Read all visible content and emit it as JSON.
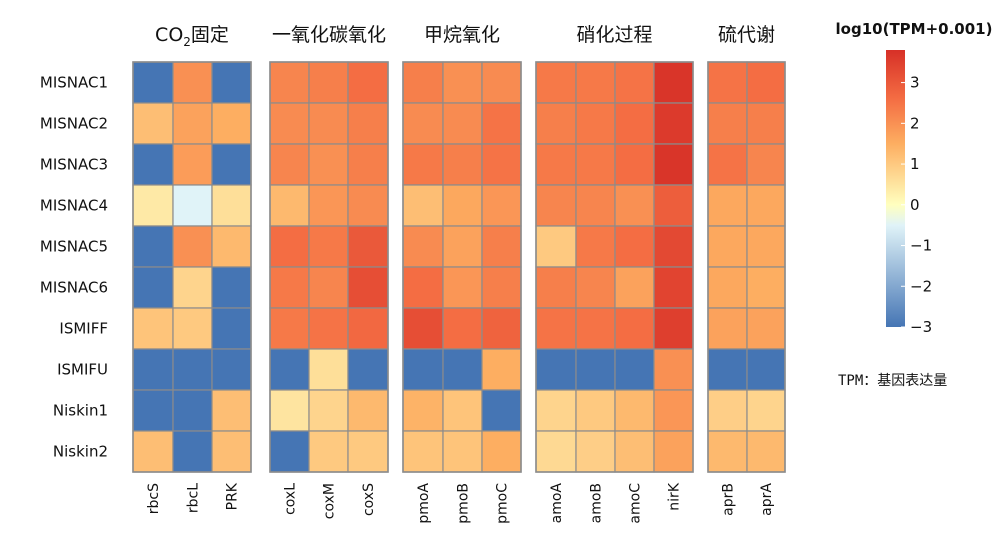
{
  "chart_data": {
    "type": "heatmap",
    "rows": [
      "MISNAC1",
      "MISNAC2",
      "MISNAC3",
      "MISNAC4",
      "MISNAC5",
      "MISNAC6",
      "ISMIFF",
      "ISMIFU",
      "Niskin1",
      "Niskin2"
    ],
    "groups": [
      {
        "title": "CO2固定",
        "title_main": "CO",
        "title_sub": "2",
        "title_tail": "固定",
        "columns": [
          "rbcS",
          "rbcL",
          "PRK"
        ],
        "values": [
          [
            -3,
            2,
            -3
          ],
          [
            1.2,
            1.7,
            1.5
          ],
          [
            -3,
            1.8,
            -3
          ],
          [
            0.4,
            -0.5,
            0.6
          ],
          [
            -3,
            2,
            1.3
          ],
          [
            -3,
            0.8,
            -3
          ],
          [
            1.1,
            1.0,
            -3
          ],
          [
            -3,
            -3,
            -3
          ],
          [
            -3,
            -3,
            1.2
          ],
          [
            1.2,
            -3,
            1.2
          ]
        ]
      },
      {
        "title": "一氧化碳氧化",
        "columns": [
          "coxL",
          "coxM",
          "coxS"
        ],
        "values": [
          [
            2.2,
            2.3,
            2.6
          ],
          [
            2.1,
            2.1,
            2.3
          ],
          [
            2.2,
            2.0,
            2.3
          ],
          [
            1.3,
            1.9,
            2.1
          ],
          [
            2.6,
            2.4,
            3.0
          ],
          [
            2.4,
            2.2,
            3.2
          ],
          [
            2.4,
            2.5,
            2.7
          ],
          [
            -3,
            0.6,
            -3
          ],
          [
            0.5,
            0.8,
            1.3
          ],
          [
            -3,
            1.0,
            1.0
          ]
        ]
      },
      {
        "title": "甲烷氧化",
        "columns": [
          "pmoA",
          "pmoB",
          "pmoC"
        ],
        "values": [
          [
            2.3,
            2.0,
            2.1
          ],
          [
            2.1,
            2.1,
            2.5
          ],
          [
            2.4,
            2.3,
            2.5
          ],
          [
            1.2,
            1.6,
            1.9
          ],
          [
            2.1,
            1.7,
            2.3
          ],
          [
            2.6,
            1.9,
            2.3
          ],
          [
            3.2,
            2.6,
            2.8
          ],
          [
            -3,
            -3,
            1.5
          ],
          [
            1.4,
            1.1,
            -3
          ],
          [
            1.1,
            1.1,
            1.5
          ]
        ]
      },
      {
        "title": "硝化过程",
        "columns": [
          "amoA",
          "amoB",
          "amoC",
          "nirK"
        ],
        "values": [
          [
            2.4,
            2.4,
            2.5,
            3.7
          ],
          [
            2.3,
            2.4,
            2.6,
            3.6
          ],
          [
            2.4,
            2.4,
            2.6,
            3.7
          ],
          [
            2.2,
            2.2,
            2.0,
            2.9
          ],
          [
            1.0,
            2.4,
            2.6,
            3.3
          ],
          [
            2.3,
            2.2,
            1.7,
            3.4
          ],
          [
            2.5,
            2.5,
            2.6,
            3.5
          ],
          [
            -3,
            -3,
            -3,
            2.0
          ],
          [
            0.8,
            1.0,
            1.3,
            1.9
          ],
          [
            0.7,
            0.9,
            1.2,
            1.7
          ]
        ]
      },
      {
        "title": "硫代谢",
        "columns": [
          "aprB",
          "aprA"
        ],
        "values": [
          [
            2.5,
            2.6
          ],
          [
            2.3,
            2.3
          ],
          [
            2.5,
            2.2
          ],
          [
            1.6,
            1.6
          ],
          [
            1.6,
            1.6
          ],
          [
            1.6,
            1.5
          ],
          [
            1.7,
            1.7
          ],
          [
            -3,
            -3
          ],
          [
            0.9,
            0.8
          ],
          [
            1.3,
            1.3
          ]
        ]
      }
    ],
    "colorbar": {
      "title": "log10(TPM+0.001)",
      "min": -3,
      "max": 3.8,
      "ticks": [
        3,
        2,
        1,
        0,
        -1,
        -2,
        -3
      ],
      "tick_labels": [
        "3",
        "2",
        "1",
        "0",
        "−1",
        "−2",
        "−3"
      ],
      "colors": [
        "#4575b4",
        "#e0f3f8",
        "#ffffbf",
        "#fdae61",
        "#f46d43",
        "#d73027"
      ],
      "color_stops": [
        -3,
        -0.5,
        0,
        1.5,
        2.6,
        3.8
      ]
    },
    "note": "TPM：基因表达量",
    "cell_border_color": "#8c8c8c"
  }
}
